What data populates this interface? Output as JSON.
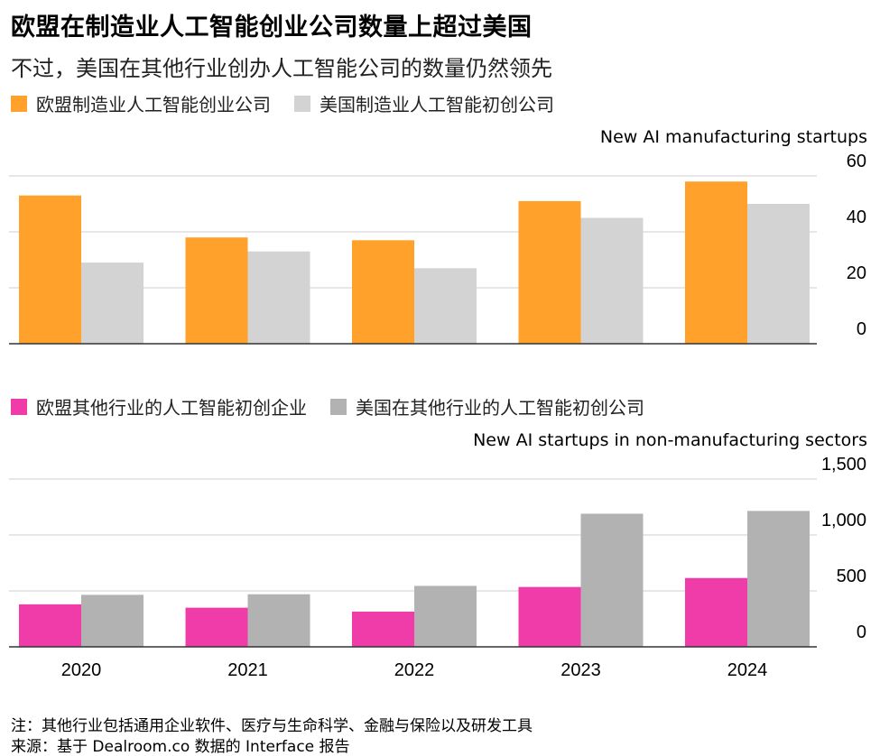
{
  "title": "欧盟在制造业人工智能创业公司数量上超过美国",
  "subtitle": "不过，美国在其他行业创办人工智能公司的数量仍然领先",
  "notes": {
    "note": "注：其他行业包括通用企业软件、医疗与生命科学、金融与保险以及研发工具",
    "source": "来源：基于 Dealroom.co 数据的 Interface 报告"
  },
  "chart_data": [
    {
      "type": "bar",
      "ylabel": "New AI manufacturing startups",
      "categories": [
        "2020",
        "2021",
        "2022",
        "2023",
        "2024"
      ],
      "ylim": [
        0,
        60
      ],
      "yticks": [
        "0",
        "20",
        "40",
        "60"
      ],
      "grid": true,
      "legend_position": "top-left",
      "series": [
        {
          "name": "欧盟制造业人工智能创业公司",
          "color": "#ffa12b",
          "values": [
            53,
            38,
            37,
            51,
            58
          ]
        },
        {
          "name": "美国制造业人工智能初创公司",
          "color": "#d3d3d3",
          "values": [
            29,
            33,
            27,
            45,
            50
          ]
        }
      ]
    },
    {
      "type": "bar",
      "ylabel": "New AI startups in non-manufacturing sectors",
      "categories": [
        "2020",
        "2021",
        "2022",
        "2023",
        "2024"
      ],
      "ylim": [
        0,
        1500
      ],
      "yticks": [
        "0",
        "500",
        "1,000",
        "1,500"
      ],
      "grid": true,
      "legend_position": "top-left",
      "series": [
        {
          "name": "欧盟其他行业的人工智能初创企业",
          "color": "#f03ca8",
          "values": [
            380,
            350,
            315,
            535,
            615
          ]
        },
        {
          "name": "美国在其他行业的人工智能初创公司",
          "color": "#b2b2b2",
          "values": [
            465,
            470,
            545,
            1190,
            1215
          ]
        }
      ]
    }
  ]
}
